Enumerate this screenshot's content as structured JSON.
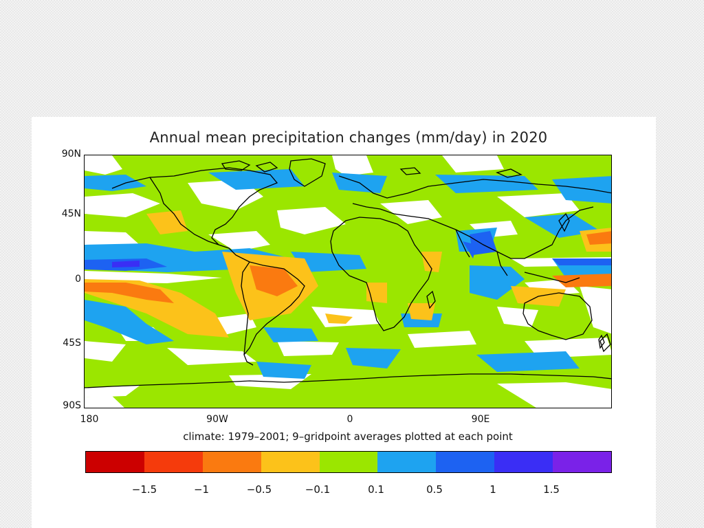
{
  "map": {
    "title": "Annual mean precipitation changes (mm/day) in 2020",
    "subtitle": "climate: 1979–2001; 9–gridpoint averages plotted at each point",
    "latitude_labels": [
      "90N",
      "45N",
      "0",
      "45S",
      "90S"
    ],
    "longitude_labels": [
      "180",
      "90W",
      "0",
      "90E"
    ],
    "background_color": "#9be600",
    "coastline_color": "#000000"
  },
  "colorbar": {
    "tick_labels": [
      "−1.5",
      "−1",
      "−0.5",
      "−0.1",
      "0.1",
      "0.5",
      "1",
      "1.5"
    ],
    "colors": [
      "#cc0000",
      "#f53b0c",
      "#fa7a10",
      "#fcc21a",
      "#9be600",
      "#1ea3f0",
      "#1d62f2",
      "#3a2ef5",
      "#7a22e8"
    ]
  }
}
